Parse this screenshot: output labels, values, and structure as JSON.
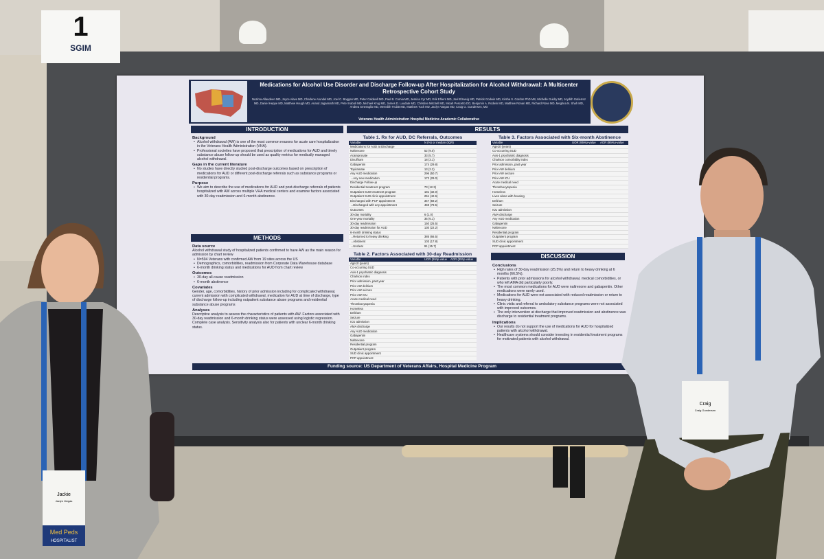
{
  "sign": {
    "number": "1",
    "org": "SGIM"
  },
  "poster": {
    "title": "Medications for Alcohol Use Disorder and Discharge Follow-up After Hospitalization for Alcohol Withdrawal: A Multicenter Retrospective Cohort Study",
    "authors": "Nazima Allaudeen MD, Joyce Akwe MD, Charlene Arundel MD, Joel C. Boggan MD, Peter Caldwell MD, Paul B. Cornia MD, Jessica Cyr MD, Erik Ehlers MD, Joel Elzweig MD, Patrick Godwin MD, Kirsha S. Gordon PhD MS, Michelle Guidry MD, Joydith Gutierrez MD, Daniel Heppe MD, Matthew Hough MD, Anand Jagannath MD, Peter Kaboli MD, Michael Krug MD, James D. Laudate MD, Christine Mitchell MD, Micah Pescetto DO, Benjamin A. Rodwin MD, Matthew Ronan MD, Richard Rose MD, Meghna N. Shah MD, Andrea Smeraglio MD, Meredith Trubitt MD, Matthew Tuck MD, Jaclyn Vargas MD, Craig G. Gundersen, MD",
    "affiliation": "Veterans Health Administration Hospital Medicine Academic Collaborative",
    "introduction": {
      "heading": "INTRODUCTION",
      "blocks": [
        {
          "heading": "Background",
          "items": [
            "Alcohol withdrawal (AW) is one of the most common reasons for acute care hospitalization in the Veterans Health Administration (VHA).",
            "Professional societies have proposed that prescription of medications for AUD and timely substance abuse follow-up should be used as quality metrics for medically managed alcohol withdrawal."
          ]
        },
        {
          "heading": "Gaps in the current literature",
          "items": [
            "No studies have directly studied post-discharge outcomes based on prescription of medications for AUD or different post-discharge referrals such as substance programs or residential programs."
          ]
        },
        {
          "heading": "Purpose",
          "items": [
            "We aim to describe the use of medications for AUD and post-discharge referrals of patients hospitalized with AW across multiple VHA medical centers and examine factors associated with 30-day readmission and 6-month abstinence."
          ]
        }
      ]
    },
    "methods": {
      "heading": "METHODS",
      "blocks": [
        {
          "heading": "Data source",
          "text": "Alcohol withdrawal study of hospitalized patients confirmed to have AW as the main reason for admission by chart review",
          "items": [
            "N=594 Veterans with confirmed AW from 19 sites across the US",
            "Demographics, comorbidities, readmission from Corporate Data Warehouse database",
            "6-month drinking status and medications for AUD from chart review"
          ]
        },
        {
          "heading": "Outcomes",
          "items": [
            "30-day all-cause readmission",
            "6-month abstinence"
          ]
        },
        {
          "heading": "Covariates",
          "text": "Gender, age, comorbidities, history of prior admission including for complicated withdrawal, current admission with complicated withdrawal, medication for AUD at time of discharge, type of discharge follow-up including outpatient substance abuse programs and residential substance abuse programs"
        },
        {
          "heading": "Analyses",
          "text": "Descriptive analysis to assess the characteristics of patients with AW. Factors associated with 30-day readmission and 6-month drinking status were assessed using logistic regression. Complete case analysis. Sensitivity analysis also for patients with unclear 6-month drinking status."
        }
      ]
    },
    "results": {
      "heading": "RESULTS",
      "table1": {
        "title": "Table 1. Rx for AUD, DC Referrals, Outcomes",
        "columns": [
          "Variable",
          "N (%) or median (IQR)"
        ],
        "rows": [
          [
            "Medications for AUD at Discharge",
            ""
          ],
          [
            "Naltrexone",
            "52 (9.0)"
          ],
          [
            "Acamprosate",
            "33 (5.7)"
          ],
          [
            "Disulfiram",
            "18 (3.1)"
          ],
          [
            "Gabapentin",
            "174 (29.8)"
          ],
          [
            "Topiramate",
            "13 (2.2)"
          ],
          [
            "Any AUD medication",
            "296 (50.7)"
          ],
          [
            "→Any new medication",
            "172 (29.0)"
          ],
          [
            "Discharge Follow-up",
            ""
          ],
          [
            "Residential treatment program",
            "73 (12.3)"
          ],
          [
            "Outpatient SUD treatment program",
            "181 (32.0)"
          ],
          [
            "Outpatient SUD clinic appointment",
            "251 (42.6)"
          ],
          [
            "Discharged with PCP appointment",
            "347 (59.2)"
          ],
          [
            "→Discharged with any appointment",
            "459 (78.5)"
          ],
          [
            "Outcomes",
            ""
          ],
          [
            "30-day mortality",
            "6 (1.0)"
          ],
          [
            "One-year mortality",
            "35 (6.1)"
          ],
          [
            "30-day readmission",
            "150 (25.5)"
          ],
          [
            "30-day readmission for AUD",
            "130 (22.2)"
          ],
          [
            "6-month drinking status",
            ""
          ],
          [
            "→Returned to heavy drinking",
            "385 (66.5)"
          ],
          [
            "→Abstinent",
            "103 (17.8)"
          ],
          [
            "→Unclear",
            "91 (15.7)"
          ]
        ]
      },
      "table2": {
        "title": "Table 2. Factors Associated with 30-day Readmission",
        "columns": [
          "Variable",
          "UOR (95% CI)",
          "p-value",
          "AOR (95% CI)",
          "p-value"
        ],
        "rows": [
          [
            "Age10 (years)"
          ],
          [
            "Co-occurring SUD"
          ],
          [
            "Axis-1 psychiatric diagnosis"
          ],
          [
            "Charlson index"
          ],
          [
            "Prior admission, past year"
          ],
          [
            "Prior AW delirium"
          ],
          [
            "Prior AW seizure"
          ],
          [
            "Prior AW ICU"
          ],
          [
            "Acute medical need"
          ],
          [
            "Thrombocytopenia"
          ],
          [
            "Homeless"
          ],
          [
            "Delirium"
          ],
          [
            "Seizure"
          ],
          [
            "ICU admission"
          ],
          [
            "AMA discharge"
          ],
          [
            "Any AUD medication"
          ],
          [
            "Gabapentin"
          ],
          [
            "Naltrexone"
          ],
          [
            "Residential program"
          ],
          [
            "Outpatient program"
          ],
          [
            "SUD clinic appointment"
          ],
          [
            "PCP appointment"
          ]
        ]
      },
      "table3": {
        "title": "Table 3. Factors Associated with Six-month Abstinence",
        "columns": [
          "Variable",
          "UOR (95% CI)",
          "p-value",
          "AOR (95% CI)",
          "p-value"
        ],
        "rows": [
          [
            "Age10 (years)"
          ],
          [
            "Co-occurring SUD"
          ],
          [
            "Axis-1 psychiatric diagnosis"
          ],
          [
            "Charlson comorbidity index"
          ],
          [
            "Prior admission, past year"
          ],
          [
            "Prior AW delirium"
          ],
          [
            "Prior AW seizure"
          ],
          [
            "Prior AW ICU"
          ],
          [
            "Acute medical need"
          ],
          [
            "Thrombocytopenia"
          ],
          [
            "Homeless"
          ],
          [
            "Lives alone with housing"
          ],
          [
            "Delirium"
          ],
          [
            "Seizure"
          ],
          [
            "ICU admission"
          ],
          [
            "AMA discharge"
          ],
          [
            "Any AUD medication"
          ],
          [
            "Gabapentin"
          ],
          [
            "Naltrexone"
          ],
          [
            "Residential program"
          ],
          [
            "Outpatient program"
          ],
          [
            "SUD clinic appointment"
          ],
          [
            "PCP appointment"
          ]
        ]
      }
    },
    "discussion": {
      "heading": "DISCUSSION",
      "blocks": [
        {
          "heading": "Conclusions",
          "items": [
            "High rates of 30-day readmission (25.5%) and return to heavy drinking at 6 months (66.5%).",
            "Patients with prior admissions for alcohol withdrawal, medical comorbidities, or who left AMA did particularly poorly.",
            "The most common medications for AUD were naltrexone and gabapentin. Other medications were rarely used.",
            "Medications for AUD were not associated with reduced readmission or return to heavy drinking.",
            "Clinic visits and referral to ambulatory substance programs were not associated with improved outcomes.",
            "The only intervention at discharge that improved readmission and abstinence was discharge to residential treatment programs."
          ]
        },
        {
          "heading": "Implications",
          "items": [
            "Our results do not support the use of medications for AUD for hospitalized patients with alcohol withdrawal.",
            "Healthcare systems should consider investing in residential treatment programs for motivated patients with alcohol withdrawal."
          ]
        }
      ]
    },
    "funding": "Funding source: US Department of Veterans Affairs, Hospital Medicine Program"
  },
  "people": {
    "left": {
      "badge_name": "Jackie",
      "badge_full": "Jaclyn Vargas",
      "ribbon1": "Med Peds",
      "ribbon2": "HOSPITALIST"
    },
    "right": {
      "badge_name": "Craig",
      "badge_full": "Craig Gundersen"
    }
  }
}
